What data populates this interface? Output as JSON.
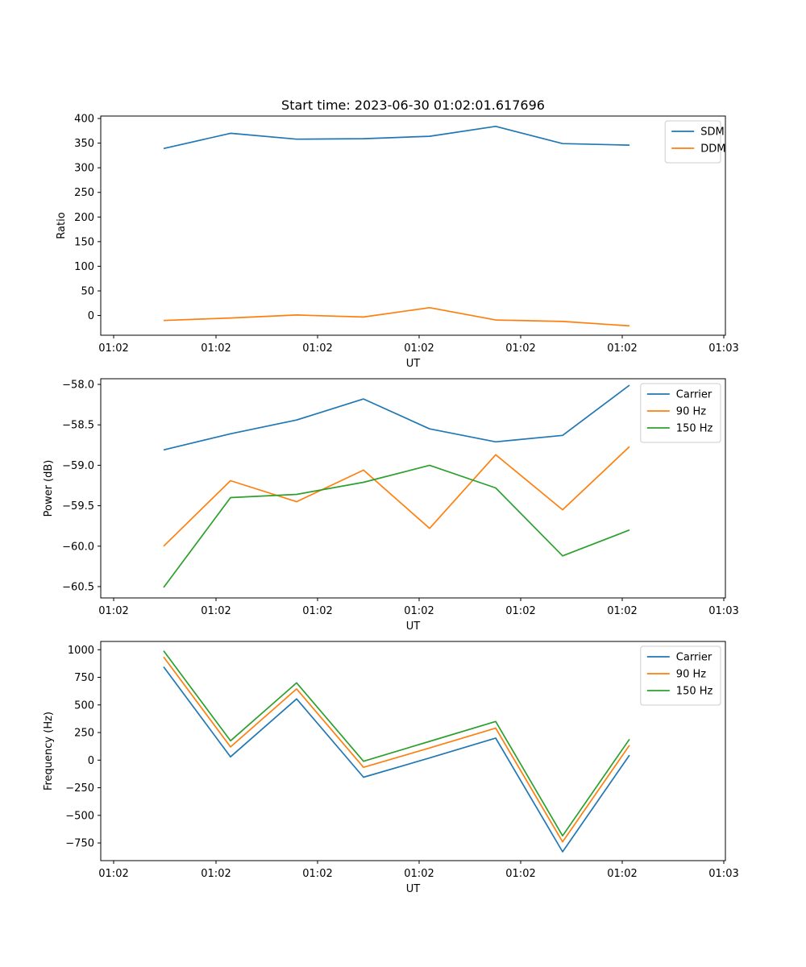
{
  "chart_data": [
    {
      "type": "line",
      "title": "Start time: 2023-06-30 01:02:01.617696",
      "xlabel": "UT",
      "ylabel": "Ratio",
      "x_tick_labels": [
        "01:02",
        "01:02",
        "01:02",
        "01:02",
        "01:02",
        "01:02",
        "01:03"
      ],
      "y_ticks": [
        0,
        50,
        100,
        150,
        200,
        250,
        300,
        350,
        400
      ],
      "y_tick_labels": [
        "0",
        "50",
        "100",
        "150",
        "200",
        "250",
        "300",
        "350",
        "400"
      ],
      "ylim": [
        -40,
        405
      ],
      "legend_loc": "upper right",
      "series": [
        {
          "name": "SDM",
          "color": "#1f77b4",
          "values": [
            339,
            370,
            358,
            359,
            364,
            384,
            349,
            346
          ]
        },
        {
          "name": "DDM",
          "color": "#ff7f0e",
          "values": [
            -10,
            -5,
            1,
            -3,
            16,
            -9,
            -12,
            -21
          ]
        }
      ]
    },
    {
      "type": "line",
      "title": "",
      "xlabel": "UT",
      "ylabel": "Power (dB)",
      "x_tick_labels": [
        "01:02",
        "01:02",
        "01:02",
        "01:02",
        "01:02",
        "01:02",
        "01:03"
      ],
      "y_ticks": [
        -60.5,
        -60.0,
        -59.5,
        -59.0,
        -58.5,
        -58.0
      ],
      "y_tick_labels": [
        "−60.5",
        "−60.0",
        "−59.5",
        "−59.0",
        "−58.5",
        "−58.0"
      ],
      "ylim": [
        -60.64,
        -57.93
      ],
      "legend_loc": "upper right",
      "series": [
        {
          "name": "Carrier",
          "color": "#1f77b4",
          "values": [
            -58.81,
            -58.61,
            -58.44,
            -58.18,
            -58.55,
            -58.71,
            -58.63,
            -58.01
          ]
        },
        {
          "name": "90 Hz",
          "color": "#ff7f0e",
          "values": [
            -60.0,
            -59.19,
            -59.45,
            -59.06,
            -59.78,
            -58.87,
            -59.55,
            -58.77
          ]
        },
        {
          "name": "150 Hz",
          "color": "#2ca02c",
          "values": [
            -60.51,
            -59.4,
            -59.36,
            -59.21,
            -59.0,
            -59.28,
            -60.12,
            -59.8
          ]
        }
      ]
    },
    {
      "type": "line",
      "title": "",
      "xlabel": "UT",
      "ylabel": "Frequency (Hz)",
      "x_tick_labels": [
        "01:02",
        "01:02",
        "01:02",
        "01:02",
        "01:02",
        "01:02",
        "01:03"
      ],
      "y_ticks": [
        -750,
        -500,
        -250,
        0,
        250,
        500,
        750,
        1000
      ],
      "y_tick_labels": [
        "−750",
        "−500",
        "−250",
        "0",
        "250",
        "500",
        "750",
        "1000"
      ],
      "ylim": [
        -910,
        1075
      ],
      "legend_loc": "upper right",
      "series": [
        {
          "name": "Carrier",
          "color": "#1f77b4",
          "values": [
            845,
            30,
            555,
            -155,
            20,
            200,
            -830,
            45
          ]
        },
        {
          "name": "90 Hz",
          "color": "#ff7f0e",
          "values": [
            935,
            120,
            645,
            -65,
            110,
            290,
            -740,
            135
          ]
        },
        {
          "name": "150 Hz",
          "color": "#2ca02c",
          "values": [
            990,
            175,
            700,
            -10,
            170,
            350,
            -685,
            190
          ]
        }
      ]
    }
  ]
}
